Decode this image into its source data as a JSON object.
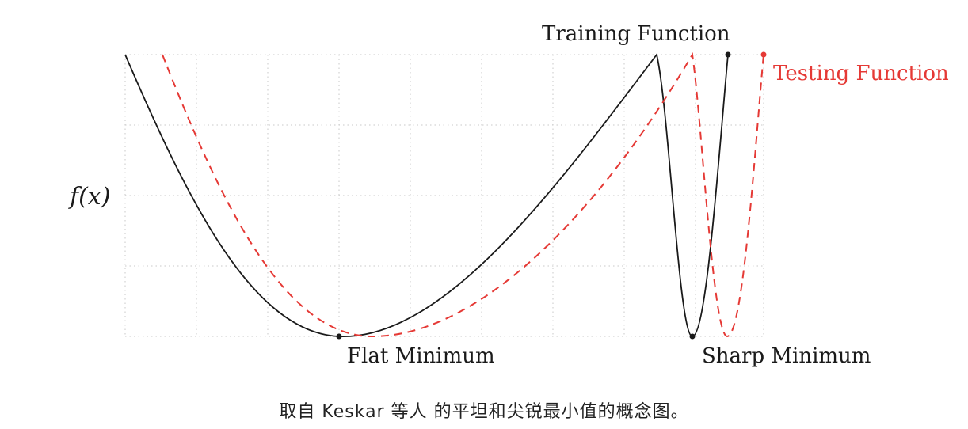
{
  "figure": {
    "y_axis_label": "f(x)",
    "training_label": "Training Function",
    "testing_label": "Testing Function",
    "flat_label": "Flat Minimum",
    "sharp_label": "Sharp Minimum",
    "caption": "取自 Keskar 等人 的平坦和尖锐最小值的概念图。",
    "colors": {
      "training": "#1a1a1a",
      "testing": "#e53935",
      "grid": "#c8c8c8"
    }
  }
}
